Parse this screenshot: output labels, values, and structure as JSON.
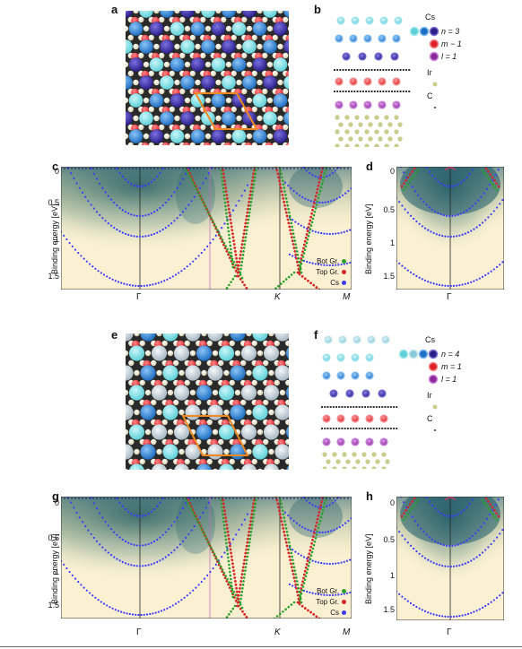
{
  "panel_letters": {
    "a": "a",
    "b": "b",
    "c": "c",
    "d": "d",
    "e": "e",
    "f": "f",
    "g": "g",
    "h": "h"
  },
  "legend_top": {
    "cs": "Cs",
    "n": "n = 3",
    "m": "m − 1",
    "l": "l = 1",
    "ir": "Ir",
    "c": "C"
  },
  "legend_bottom": {
    "cs": "Cs",
    "n": "n = 4",
    "m": "m = 1",
    "l": "l = 1",
    "ir": "Ir",
    "c": "C"
  },
  "arpes": {
    "ylabel": "Binding energy [eV]",
    "yticks": [
      "0",
      "0.5",
      "1",
      "1.5"
    ],
    "kpoints": {
      "gamma": "Γ",
      "k": "K",
      "m": "M"
    },
    "series": {
      "bot": "Bot Gr.",
      "top": "Top Gr.",
      "cs": "Cs"
    }
  },
  "colors": {
    "cs_light": "#5fd0d8",
    "cs_mid": "#1e6fc4",
    "cs_dark": "#2a1f8a",
    "m_red": "#e0202a",
    "l_purple": "#8a2a9a",
    "ir": "#c9cc8a",
    "carbon": "#333333",
    "bot_green": "#2ca02c",
    "top_red": "#d62728",
    "cs_blue": "#3a3aff",
    "bg_yellow": "#fbf1d2",
    "bg_dark": "#1d5a6a",
    "cell_orange": "#f08a20"
  },
  "chart_data": [
    {
      "type": "line",
      "panel": "c",
      "x": [
        "Γ",
        "K",
        "M"
      ],
      "ylabel": "Binding energy [eV]",
      "ylim": [
        1.8,
        0
      ],
      "series": [
        {
          "name": "Bot Gr."
        },
        {
          "name": "Top Gr."
        },
        {
          "name": "Cs"
        }
      ]
    },
    {
      "type": "heatmap",
      "panel": "d",
      "x": [
        "Γ"
      ],
      "ylabel": "Binding energy [eV]",
      "ylim": [
        1.8,
        0
      ]
    },
    {
      "type": "line",
      "panel": "g",
      "x": [
        "Γ",
        "K",
        "M"
      ],
      "ylabel": "Binding energy [eV]",
      "ylim": [
        1.8,
        0
      ],
      "series": [
        {
          "name": "Bot Gr."
        },
        {
          "name": "Top Gr."
        },
        {
          "name": "Cs"
        }
      ]
    },
    {
      "type": "heatmap",
      "panel": "h",
      "x": [
        "Γ"
      ],
      "ylabel": "Binding energy [eV]",
      "ylim": [
        1.8,
        0
      ]
    }
  ]
}
